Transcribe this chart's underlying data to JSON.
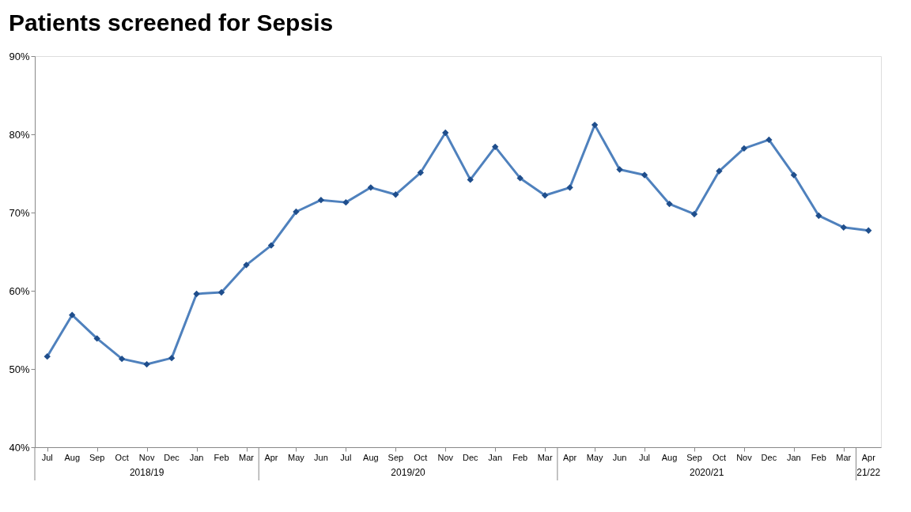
{
  "chart_data": {
    "type": "line",
    "title": "Patients screened for Sepsis",
    "categories": [
      "Jul",
      "Aug",
      "Sep",
      "Oct",
      "Nov",
      "Dec",
      "Jan",
      "Feb",
      "Mar",
      "Apr",
      "May",
      "Jun",
      "Jul",
      "Aug",
      "Sep",
      "Oct",
      "Nov",
      "Dec",
      "Jan",
      "Feb",
      "Mar",
      "Apr",
      "May",
      "Jun",
      "Jul",
      "Aug",
      "Sep",
      "Oct",
      "Nov",
      "Dec",
      "Jan",
      "Feb",
      "Mar",
      "Apr"
    ],
    "series": [
      {
        "color": "#4f81bd",
        "values": [
          51.6,
          56.9,
          53.9,
          51.3,
          50.6,
          51.4,
          59.6,
          59.8,
          63.3,
          65.8,
          70.1,
          71.6,
          71.3,
          73.2,
          72.3,
          75.1,
          80.2,
          74.2,
          78.4,
          74.4,
          72.2,
          73.2,
          81.2,
          75.5,
          74.8,
          71.1,
          69.8,
          75.3,
          78.2,
          79.3,
          74.8,
          69.6,
          68.1,
          67.7
        ]
      }
    ],
    "ylim": [
      40,
      90
    ],
    "yticks": [
      {
        "value": 40,
        "label": "40%"
      },
      {
        "value": 50,
        "label": "50%"
      },
      {
        "value": 60,
        "label": "60%"
      },
      {
        "value": 70,
        "label": "70%"
      },
      {
        "value": 80,
        "label": "80%"
      },
      {
        "value": 90,
        "label": "90%"
      }
    ],
    "annotations": [
      "2018/19",
      "2019/20",
      "2020/21",
      "21/22"
    ],
    "marker": "diamond",
    "grid": false
  }
}
